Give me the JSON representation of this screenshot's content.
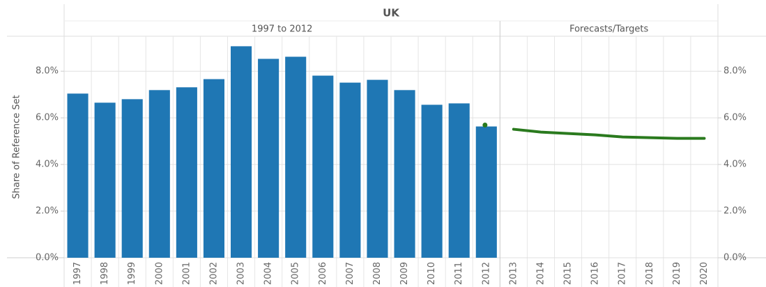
{
  "chart_data": {
    "type": "bar",
    "title": "UK",
    "panels": [
      "1997 to 2012",
      "Forecasts/Targets"
    ],
    "y_label": "Share of Reference Set",
    "categories": [
      "1997",
      "1998",
      "1999",
      "2000",
      "2001",
      "2002",
      "2003",
      "2004",
      "2005",
      "2006",
      "2007",
      "2008",
      "2009",
      "2010",
      "2011",
      "2012",
      "2013",
      "2014",
      "2015",
      "2016",
      "2017",
      "2018",
      "2019",
      "2020"
    ],
    "series": [
      {
        "type": "bar",
        "color": "#1f77b4",
        "values": [
          7.04,
          6.65,
          6.8,
          7.19,
          7.31,
          7.66,
          9.07,
          8.53,
          8.62,
          7.81,
          7.51,
          7.63,
          7.19,
          6.56,
          6.62,
          5.63,
          null,
          null,
          null,
          null,
          null,
          null,
          null,
          null
        ]
      },
      {
        "type": "line",
        "color": "#2a7a1e",
        "values": [
          null,
          null,
          null,
          null,
          null,
          null,
          null,
          null,
          null,
          null,
          null,
          null,
          null,
          null,
          null,
          null,
          5.51,
          5.39,
          5.33,
          5.27,
          5.18,
          5.15,
          5.12,
          5.12
        ]
      },
      {
        "type": "point",
        "color": "#2a7a1e",
        "values": [
          null,
          null,
          null,
          null,
          null,
          null,
          null,
          null,
          null,
          null,
          null,
          null,
          null,
          null,
          null,
          5.69,
          null,
          null,
          null,
          null,
          null,
          null,
          null,
          null
        ]
      }
    ],
    "ylim": [
      0,
      9.5
    ],
    "yticks": [
      {
        "value": 0,
        "label": "0.0%"
      },
      {
        "value": 2,
        "label": "2.0%"
      },
      {
        "value": 4,
        "label": "4.0%"
      },
      {
        "value": 6,
        "label": "6.0%"
      },
      {
        "value": 8,
        "label": "8.0%"
      }
    ],
    "y2lim": [
      0,
      9.5
    ],
    "y2ticks": [
      {
        "value": 0,
        "label": "0.0%"
      },
      {
        "value": 2,
        "label": "2.0%"
      },
      {
        "value": 4,
        "label": "4.0%"
      },
      {
        "value": 6,
        "label": "6.0%"
      },
      {
        "value": 8,
        "label": "8.0%"
      }
    ],
    "grid": true
  }
}
